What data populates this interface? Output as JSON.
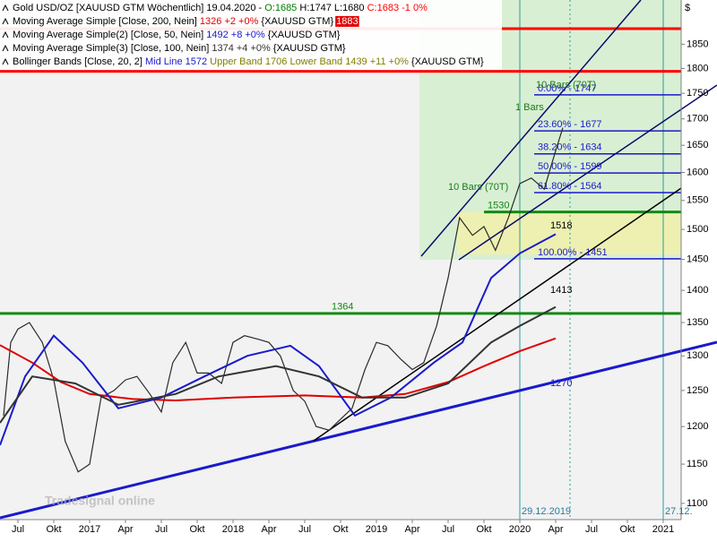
{
  "chart_data": {
    "type": "line",
    "legend": [
      {
        "parts": [
          {
            "text": "Gold USD/OZ [XAUUSD GTM  Wöchentlich] 19.04.2020 - ",
            "color": "#000000"
          },
          {
            "text": "O:1685",
            "color": "#008000"
          },
          {
            "text": " H:1747 L:1680 ",
            "color": "#000000"
          },
          {
            "text": "C:1683 -1 0%",
            "color": "#ff0000"
          }
        ]
      },
      {
        "parts": [
          {
            "text": "Moving Average Simple [Close, 200, Nein] ",
            "color": "#000000"
          },
          {
            "text": "1326 +2 +0%",
            "color": "#e00000"
          },
          {
            "text": " {XAUUSD GTM} ",
            "color": "#000000"
          },
          {
            "text": "1883",
            "color": "#ffffff",
            "bg": "#e00000"
          }
        ]
      },
      {
        "parts": [
          {
            "text": "Moving Average Simple(2) [Close, 50, Nein] ",
            "color": "#000000"
          },
          {
            "text": "1492 +8 +0%",
            "color": "#1a1acc"
          },
          {
            "text": " {XAUUSD GTM}",
            "color": "#000000"
          }
        ]
      },
      {
        "parts": [
          {
            "text": "Moving Average Simple(3) [Close, 100, Nein] ",
            "color": "#000000"
          },
          {
            "text": "1374 +4 +0%",
            "color": "#333333"
          },
          {
            "text": " {XAUUSD GTM}",
            "color": "#000000"
          }
        ]
      },
      {
        "parts": [
          {
            "text": "Bollinger Bands [Close, 20, 2] ",
            "color": "#000000"
          },
          {
            "text": "Mid Line 1572",
            "color": "#1a1acc"
          },
          {
            "text": " Upper Band 1706",
            "color": "#808000"
          },
          {
            "text": " Lower Band 1439",
            "color": "#808000"
          },
          {
            "text": " +11 +0%",
            "color": "#808000"
          },
          {
            "text": " {XAUUSD GTM}",
            "color": "#000000"
          }
        ]
      }
    ],
    "currency": "$",
    "log_scale": true,
    "ylim": [
      1080,
      1945
    ],
    "yticks": [
      1100,
      1150,
      1200,
      1250,
      1300,
      1350,
      1400,
      1450,
      1500,
      1550,
      1600,
      1650,
      1700,
      1750,
      1800,
      1850
    ],
    "xlim": [
      2016.375,
      2021.125
    ],
    "xticks": [
      {
        "value": 2016.5,
        "label": "Jul"
      },
      {
        "value": 2016.75,
        "label": "Okt"
      },
      2017,
      {
        "value": 2017.25,
        "label": "Apr"
      },
      {
        "value": 2017.5,
        "label": "Jul"
      },
      {
        "value": 2017.75,
        "label": "Okt"
      },
      2018,
      {
        "value": 2018.25,
        "label": "Apr"
      },
      {
        "value": 2018.5,
        "label": "Jul"
      },
      {
        "value": 2018.75,
        "label": "Okt"
      },
      2019,
      {
        "value": 2019.25,
        "label": "Apr"
      },
      {
        "value": 2019.5,
        "label": "Jul"
      },
      {
        "value": 2019.75,
        "label": "Okt"
      },
      2020,
      {
        "value": 2020.25,
        "label": "Apr"
      },
      {
        "value": 2020.5,
        "label": "Jul"
      },
      {
        "value": 2020.75,
        "label": "Okt"
      },
      2021
    ],
    "series": [
      {
        "name": "Gold USD/OZ",
        "color": "#2a2a2a",
        "width": 1.2,
        "x": [
          2016.4,
          2016.45,
          2016.5,
          2016.58,
          2016.67,
          2016.75,
          2016.83,
          2016.92,
          2017.0,
          2017.08,
          2017.17,
          2017.25,
          2017.33,
          2017.42,
          2017.5,
          2017.58,
          2017.67,
          2017.75,
          2017.83,
          2017.92,
          2018.0,
          2018.08,
          2018.17,
          2018.25,
          2018.33,
          2018.42,
          2018.5,
          2018.58,
          2018.67,
          2018.75,
          2018.83,
          2018.92,
          2019.0,
          2019.08,
          2019.17,
          2019.25,
          2019.33,
          2019.42,
          2019.5,
          2019.58,
          2019.67,
          2019.75,
          2019.83,
          2019.92,
          2020.0,
          2020.08,
          2020.17,
          2020.25,
          2020.3
        ],
        "values": [
          1215,
          1320,
          1340,
          1350,
          1320,
          1265,
          1180,
          1140,
          1150,
          1240,
          1250,
          1265,
          1270,
          1245,
          1220,
          1290,
          1320,
          1275,
          1275,
          1260,
          1320,
          1330,
          1325,
          1320,
          1300,
          1250,
          1235,
          1200,
          1195,
          1210,
          1225,
          1280,
          1320,
          1315,
          1295,
          1280,
          1290,
          1345,
          1420,
          1520,
          1490,
          1505,
          1465,
          1520,
          1580,
          1590,
          1570,
          1640,
          1683
        ]
      },
      {
        "name": "Moving Average Simple",
        "color": "#e00000",
        "width": 2,
        "x": [
          2016.375,
          2016.6,
          2016.8,
          2017.0,
          2017.3,
          2017.6,
          2018.0,
          2018.5,
          2018.9,
          2019.2,
          2019.5,
          2019.75,
          2020.0,
          2020.25
        ],
        "values": [
          1316,
          1290,
          1262,
          1245,
          1238,
          1236,
          1240,
          1243,
          1240,
          1245,
          1262,
          1285,
          1307,
          1326
        ]
      },
      {
        "name": "Moving Average Simple(2)",
        "color": "#1a1acc",
        "width": 2,
        "x": [
          2016.375,
          2016.55,
          2016.75,
          2016.95,
          2017.2,
          2017.5,
          2017.8,
          2018.1,
          2018.4,
          2018.6,
          2018.85,
          2019.1,
          2019.4,
          2019.6,
          2019.8,
          2020.0,
          2020.25
        ],
        "values": [
          1175,
          1270,
          1330,
          1290,
          1225,
          1240,
          1270,
          1300,
          1315,
          1285,
          1215,
          1240,
          1290,
          1320,
          1420,
          1460,
          1492
        ]
      },
      {
        "name": "Moving Average Simple(3)",
        "color": "#333333",
        "width": 2,
        "x": [
          2016.375,
          2016.6,
          2016.9,
          2017.2,
          2017.6,
          2017.9,
          2018.3,
          2018.6,
          2018.9,
          2019.2,
          2019.5,
          2019.8,
          2020.0,
          2020.25
        ],
        "values": [
          1205,
          1270,
          1260,
          1230,
          1245,
          1270,
          1285,
          1270,
          1240,
          1240,
          1260,
          1320,
          1345,
          1374
        ]
      }
    ],
    "levels": [
      {
        "value": 1883,
        "color": "#ff0000",
        "width": 3,
        "from": 2016.375
      },
      {
        "value": 1794,
        "color": "#ff0000",
        "width": 3,
        "from": 2016.375
      },
      {
        "value": 1364,
        "color": "#138a13",
        "width": 3,
        "from": 2016.375,
        "label": "1364"
      },
      {
        "value": 1747,
        "color": "#1a1acc",
        "width": 1.5,
        "from": 2020.1,
        "label": "0.00% - 1747"
      },
      {
        "value": 1677,
        "color": "#1a1acc",
        "width": 1.5,
        "from": 2020.1,
        "label": "23.60% - 1677"
      },
      {
        "value": 1634,
        "color": "#1a1acc",
        "width": 1.5,
        "from": 2020.1,
        "label": "38.20% - 1634"
      },
      {
        "value": 1599,
        "color": "#1a1acc",
        "width": 1.5,
        "from": 2020.1,
        "label": "50.00% - 1599"
      },
      {
        "value": 1564,
        "color": "#1a1acc",
        "width": 1.5,
        "from": 2020.1,
        "label": "61.80% - 1564"
      },
      {
        "value": 1530,
        "color": "#138a13",
        "width": 3,
        "from": 2019.75,
        "label": "1530"
      },
      {
        "value": 1451,
        "color": "#1a1acc",
        "width": 1.5,
        "from": 2020.1,
        "label": "100.00% - 1451"
      }
    ],
    "vlines": [
      {
        "x": 2020.0,
        "label": "29.12.2019",
        "color": "#2a9a9a",
        "dash": false
      },
      {
        "x": 2020.35,
        "color": "#2a9a9a",
        "dash": true
      },
      {
        "x": 2021.0,
        "label": "27.12.",
        "color": "#2a9a9a",
        "dash": false
      }
    ],
    "annotations": [
      "1270",
      "1518",
      "1413",
      "10 Bars (70T)",
      "10 Bars (70T)",
      "1 Bars"
    ],
    "watermark": "Tradesignal online"
  }
}
